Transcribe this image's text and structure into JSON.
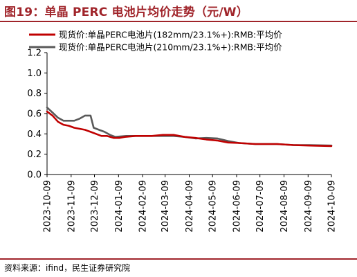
{
  "title": "图19：单晶 PERC 电池片均价走势（元/W）",
  "source": "资料来源：ifind，民生证券研究院",
  "colors": {
    "accent": "#a0242a",
    "series_182": "#c00000",
    "series_210": "#595959"
  },
  "chart_data": {
    "type": "line",
    "title": "单晶 PERC 电池片均价走势（元/W）",
    "xlabel": "",
    "ylabel": "",
    "x_ticks": [
      "2023-10-09",
      "2023-11-09",
      "2023-12-09",
      "2024-01-09",
      "2024-02-09",
      "2024-03-09",
      "2024-04-09",
      "2024-05-09",
      "2024-06-09",
      "2024-07-09",
      "2024-08-09",
      "2024-09-09",
      "2024-10-09"
    ],
    "y_ticks": [
      "0.0",
      "0.2",
      "0.4",
      "0.6",
      "0.8",
      "1.0",
      "1.2"
    ],
    "ylim": [
      0,
      1.2
    ],
    "xlim": [
      "2023-10-09",
      "2024-10-09"
    ],
    "legend_position": "top",
    "grid": false,
    "series": [
      {
        "name": "现货价:单晶PERC电池片(182mm/23.1%+):RMB:平均价",
        "color": "#c00000",
        "points": [
          [
            "2023-10-09",
            0.62
          ],
          [
            "2023-10-16",
            0.58
          ],
          [
            "2023-10-23",
            0.52
          ],
          [
            "2023-10-30",
            0.49
          ],
          [
            "2023-11-06",
            0.48
          ],
          [
            "2023-11-13",
            0.46
          ],
          [
            "2023-11-20",
            0.45
          ],
          [
            "2023-11-27",
            0.44
          ],
          [
            "2023-12-04",
            0.42
          ],
          [
            "2023-12-11",
            0.4
          ],
          [
            "2023-12-18",
            0.38
          ],
          [
            "2023-12-25",
            0.38
          ],
          [
            "2024-01-03",
            0.36
          ],
          [
            "2024-01-10",
            0.36
          ],
          [
            "2024-01-17",
            0.37
          ],
          [
            "2024-01-31",
            0.38
          ],
          [
            "2024-02-21",
            0.38
          ],
          [
            "2024-03-06",
            0.39
          ],
          [
            "2024-03-20",
            0.39
          ],
          [
            "2024-04-03",
            0.37
          ],
          [
            "2024-04-17",
            0.36
          ],
          [
            "2024-05-01",
            0.345
          ],
          [
            "2024-05-15",
            0.335
          ],
          [
            "2024-05-29",
            0.315
          ],
          [
            "2024-06-12",
            0.31
          ],
          [
            "2024-07-03",
            0.3
          ],
          [
            "2024-07-31",
            0.3
          ],
          [
            "2024-08-21",
            0.29
          ],
          [
            "2024-09-11",
            0.285
          ],
          [
            "2024-10-09",
            0.28
          ]
        ]
      },
      {
        "name": "现货价:单晶PERC电池片(210mm/23.1%+):RMB:平均价",
        "color": "#595959",
        "points": [
          [
            "2023-10-09",
            0.66
          ],
          [
            "2023-10-16",
            0.61
          ],
          [
            "2023-10-23",
            0.56
          ],
          [
            "2023-10-30",
            0.53
          ],
          [
            "2023-11-06",
            0.53
          ],
          [
            "2023-11-13",
            0.53
          ],
          [
            "2023-11-20",
            0.55
          ],
          [
            "2023-11-27",
            0.58
          ],
          [
            "2023-12-04",
            0.58
          ],
          [
            "2023-12-08",
            0.46
          ],
          [
            "2023-12-15",
            0.44
          ],
          [
            "2023-12-22",
            0.42
          ],
          [
            "2023-12-29",
            0.39
          ],
          [
            "2024-01-05",
            0.37
          ],
          [
            "2024-01-19",
            0.38
          ],
          [
            "2024-02-21",
            0.38
          ],
          [
            "2024-03-20",
            0.38
          ],
          [
            "2024-04-03",
            0.37
          ],
          [
            "2024-04-17",
            0.355
          ],
          [
            "2024-05-01",
            0.36
          ],
          [
            "2024-05-15",
            0.355
          ],
          [
            "2024-05-29",
            0.33
          ],
          [
            "2024-06-12",
            0.31
          ],
          [
            "2024-07-03",
            0.3
          ],
          [
            "2024-07-31",
            0.3
          ],
          [
            "2024-08-21",
            0.29
          ],
          [
            "2024-09-11",
            0.29
          ],
          [
            "2024-10-09",
            0.285
          ]
        ]
      }
    ]
  }
}
